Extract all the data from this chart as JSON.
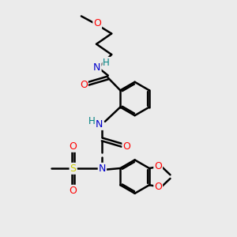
{
  "bg_color": "#ebebeb",
  "atom_colors": {
    "C": "#000000",
    "N": "#0000cc",
    "O": "#ff0000",
    "S": "#cccc00",
    "H_on_N": "#008080"
  },
  "bond_color": "#000000",
  "bond_width": 1.8,
  "fig_size": [
    3.0,
    3.0
  ],
  "dpi": 100,
  "xlim": [
    0,
    10
  ],
  "ylim": [
    0,
    10
  ]
}
